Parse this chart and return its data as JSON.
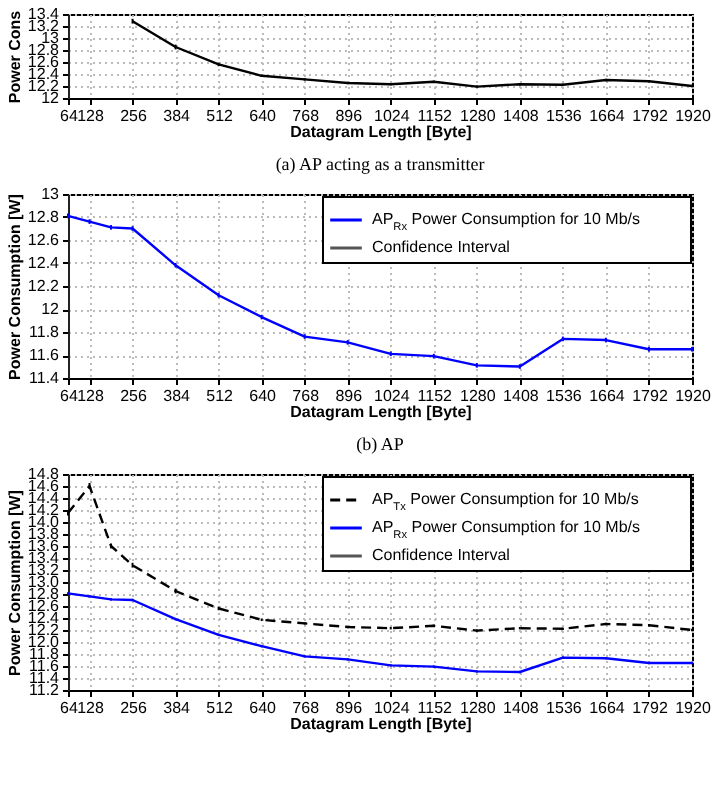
{
  "chart_data": [
    {
      "type": "line",
      "title": "(a) AP acting as a transmitter",
      "xlabel": "Datagram Length [Byte]",
      "ylabel": "Power Cons",
      "x": [
        256,
        384,
        512,
        640,
        768,
        896,
        1024,
        1152,
        1280,
        1408,
        1536,
        1664,
        1792,
        1920
      ],
      "xlim": [
        64,
        1920
      ],
      "xticks": [
        64,
        128,
        256,
        384,
        512,
        640,
        768,
        896,
        1024,
        1152,
        1280,
        1408,
        1536,
        1664,
        1792,
        1920
      ],
      "ylim": [
        12,
        13.4
      ],
      "yticks": [
        12,
        12.2,
        12.4,
        12.6,
        12.8,
        13,
        13.2,
        13.4
      ],
      "grid": true,
      "legend": false,
      "series": [
        {
          "color": "#000000",
          "line_style": "solid",
          "values": [
            13.28,
            12.85,
            12.56,
            12.37,
            12.31,
            12.25,
            12.23,
            12.27,
            12.19,
            12.23,
            12.22,
            12.3,
            12.28,
            12.2
          ],
          "errors": [
            0.04,
            0.04,
            0.03,
            0.02,
            0.02,
            0.02,
            0.02,
            0.02,
            0.02,
            0.02,
            0.02,
            0.02,
            0.02,
            0.02
          ]
        }
      ]
    },
    {
      "type": "line",
      "title": "(b) AP",
      "xlabel": "Datagram Length [Byte]",
      "ylabel": "Power Consumption [W]",
      "x": [
        64,
        128,
        192,
        256,
        384,
        512,
        640,
        768,
        896,
        1024,
        1152,
        1280,
        1408,
        1536,
        1664,
        1792,
        1920
      ],
      "xlim": [
        64,
        1920
      ],
      "xticks": [
        64,
        128,
        256,
        384,
        512,
        640,
        768,
        896,
        1024,
        1152,
        1280,
        1408,
        1536,
        1664,
        1792,
        1920
      ],
      "ylim": [
        11.4,
        13
      ],
      "yticks": [
        11.4,
        11.6,
        11.8,
        12,
        12.2,
        12.4,
        12.6,
        12.8,
        13
      ],
      "grid": true,
      "legend": "top right",
      "annotations": [
        "Confidence Interval"
      ],
      "series": [
        {
          "name": "AP$_{Rx}$ Power Consumption for 10 Mb/s",
          "color": "#0000ff",
          "line_style": "solid",
          "values": [
            12.81,
            12.76,
            12.71,
            12.7,
            12.38,
            12.12,
            11.93,
            11.76,
            11.71,
            11.61,
            11.59,
            11.51,
            11.5,
            11.74,
            11.73,
            11.65,
            11.65
          ],
          "errors": [
            0.02,
            0.02,
            0.02,
            0.02,
            0.02,
            0.02,
            0.02,
            0.02,
            0.02,
            0.02,
            0.02,
            0.02,
            0.02,
            0.02,
            0.02,
            0.02,
            0.02
          ]
        }
      ]
    },
    {
      "type": "line",
      "xlabel": "Datagram Length [Byte]",
      "ylabel": "Power Consumption [W]",
      "x": [
        64,
        128,
        192,
        256,
        384,
        512,
        640,
        768,
        896,
        1024,
        1152,
        1280,
        1408,
        1536,
        1664,
        1792,
        1920
      ],
      "xlim": [
        64,
        1920
      ],
      "xticks": [
        64,
        128,
        256,
        384,
        512,
        640,
        768,
        896,
        1024,
        1152,
        1280,
        1408,
        1536,
        1664,
        1792,
        1920
      ],
      "ylim": [
        11.2,
        14.8
      ],
      "yticks": [
        {
          "value": 11.2,
          "label": "11.2"
        },
        {
          "value": 11.4,
          "label": "11.4"
        },
        {
          "value": 11.6,
          "label": "11.6"
        },
        {
          "value": 11.8,
          "label": "11.8"
        },
        {
          "value": 12,
          "label": "12.0"
        },
        {
          "value": 12.2,
          "label": "12.2"
        },
        {
          "value": 12.4,
          "label": "12.4"
        },
        {
          "value": 12.6,
          "label": "12.6"
        },
        {
          "value": 12.8,
          "label": "12.8"
        },
        {
          "value": 13,
          "label": "13.0"
        },
        {
          "value": 13.2,
          "label": "13.2"
        },
        {
          "value": 13.4,
          "label": "13.4"
        },
        {
          "value": 13.6,
          "label": "13.6"
        },
        {
          "value": 13.8,
          "label": "13.8"
        },
        {
          "value": 14,
          "label": "14.0"
        },
        {
          "value": 14.2,
          "label": "14.2"
        },
        {
          "value": 14.4,
          "label": "14.4"
        },
        {
          "value": 14.6,
          "label": "14.6"
        },
        {
          "value": 14.8,
          "label": "14.8"
        }
      ],
      "grid": true,
      "legend": "top right",
      "annotations": [
        "Confidence Interval"
      ],
      "series": [
        {
          "name": "AP$_{Tx}$ Power Consumption for 10 Mb/s",
          "color": "#000000",
          "line_style": "dashed",
          "values": [
            14.15,
            14.6,
            13.6,
            13.28,
            12.85,
            12.56,
            12.37,
            12.31,
            12.25,
            12.23,
            12.27,
            12.19,
            12.23,
            12.22,
            12.3,
            12.28,
            12.2
          ],
          "errors": [
            0.04,
            0.05,
            0.04,
            0.04,
            0.04,
            0.03,
            0.02,
            0.02,
            0.02,
            0.02,
            0.02,
            0.02,
            0.02,
            0.02,
            0.02,
            0.02,
            0.02
          ]
        },
        {
          "name": "AP$_{Rx}$ Power Consumption for 10 Mb/s",
          "color": "#0000ff",
          "line_style": "solid",
          "values": [
            12.81,
            12.76,
            12.71,
            12.7,
            12.38,
            12.12,
            11.93,
            11.76,
            11.71,
            11.61,
            11.59,
            11.51,
            11.5,
            11.74,
            11.73,
            11.65,
            11.65
          ],
          "errors": [
            0.02,
            0.02,
            0.02,
            0.02,
            0.02,
            0.02,
            0.02,
            0.02,
            0.02,
            0.02,
            0.02,
            0.02,
            0.02,
            0.02,
            0.02,
            0.02,
            0.02
          ]
        }
      ]
    }
  ]
}
